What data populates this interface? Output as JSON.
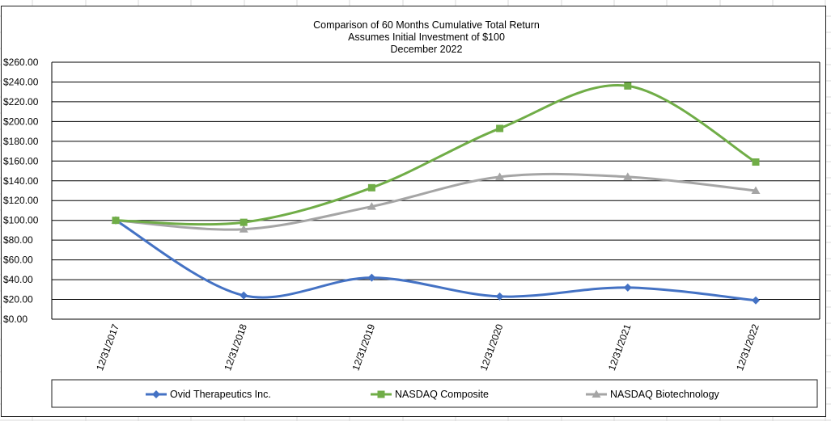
{
  "chart_data": {
    "type": "line",
    "title_lines": [
      "Comparison of 60 Months Cumulative Total Return",
      "Assumes Initial Investment of $100",
      "December 2022"
    ],
    "categories": [
      "12/31/2017",
      "12/31/2018",
      "12/31/2019",
      "12/31/2020",
      "12/31/2021",
      "12/31/2022"
    ],
    "y_ticks": [
      "$0.00",
      "$20.00",
      "$40.00",
      "$60.00",
      "$80.00",
      "$100.00",
      "$120.00",
      "$140.00",
      "$160.00",
      "$180.00",
      "$200.00",
      "$220.00",
      "$240.00",
      "$260.00"
    ],
    "ylim": [
      0,
      260
    ],
    "grid": "horizontal",
    "legend_position": "bottom",
    "series": [
      {
        "name": "Ovid Therapeutics Inc.",
        "marker": "diamond",
        "color": "#4472C4",
        "values": [
          100,
          24,
          42,
          23,
          32,
          19
        ]
      },
      {
        "name": "NASDAQ Composite",
        "marker": "square",
        "color": "#70AD47",
        "values": [
          100,
          98,
          133,
          193,
          236,
          159
        ]
      },
      {
        "name": "NASDAQ Biotechnology",
        "marker": "triangle",
        "color": "#A5A5A5",
        "values": [
          100,
          91,
          114,
          144,
          144,
          130
        ]
      }
    ]
  }
}
